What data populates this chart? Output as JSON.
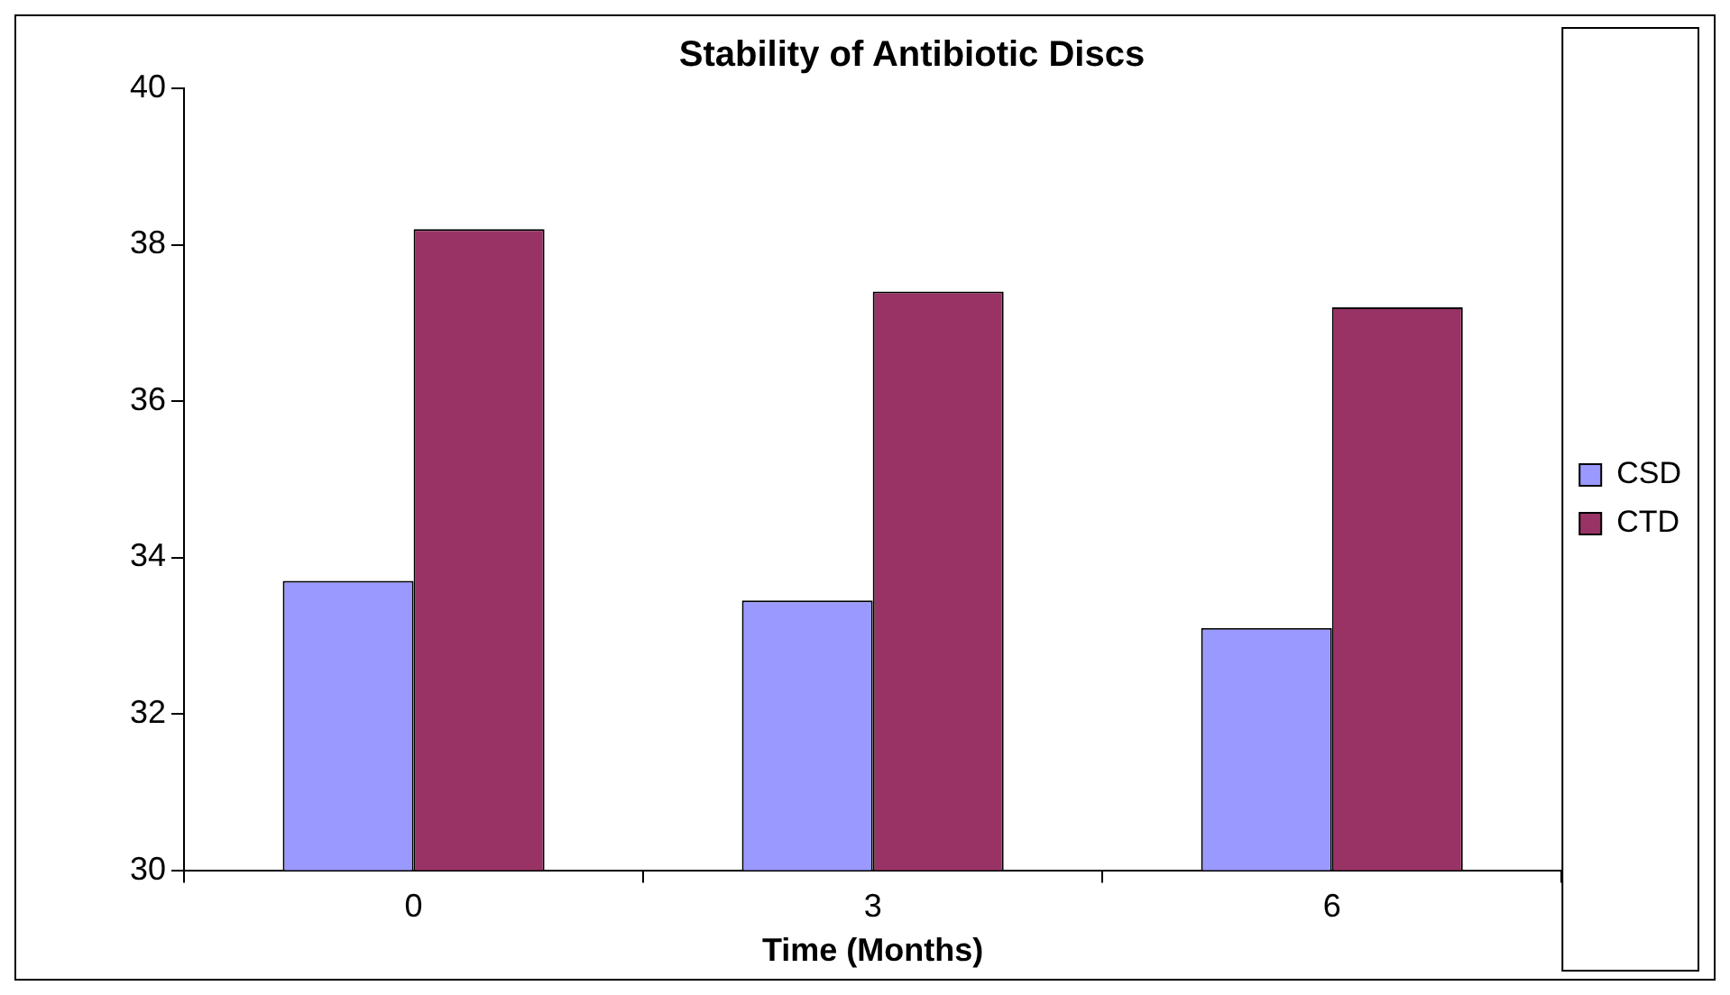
{
  "chart_data": {
    "type": "bar",
    "title": "Stability of Antibiotic Discs",
    "xlabel": "Time (Months)",
    "categories": [
      "0",
      "3",
      "6"
    ],
    "series": [
      {
        "name": "CSD",
        "color": "#9999ff",
        "values": [
          33.7,
          33.45,
          33.1
        ]
      },
      {
        "name": "CTD",
        "color": "#993366",
        "values": [
          38.2,
          37.4,
          37.2
        ]
      }
    ],
    "ylim": [
      30,
      40
    ],
    "yticks": [
      30,
      32,
      34,
      36,
      38,
      40
    ],
    "grid": false,
    "legend": "right"
  }
}
